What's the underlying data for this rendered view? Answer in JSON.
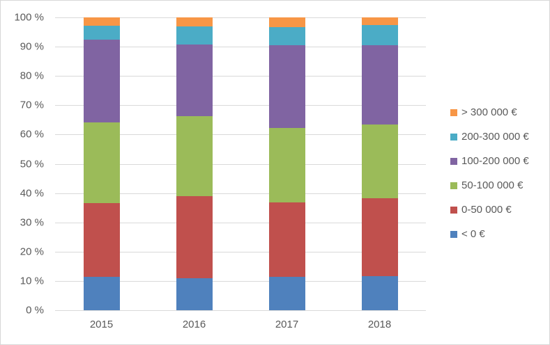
{
  "chart_data": {
    "type": "bar",
    "stacked": true,
    "percent": true,
    "title": "",
    "xlabel": "",
    "ylabel": "",
    "categories": [
      "2015",
      "2016",
      "2017",
      "2018"
    ],
    "series": [
      {
        "name": "< 0 €",
        "color": "#4F81BD",
        "values": [
          11.5,
          10.9,
          11.3,
          11.6
        ]
      },
      {
        "name": "0-50 000 €",
        "color": "#C0504D",
        "values": [
          25.0,
          28.0,
          25.4,
          26.6
        ]
      },
      {
        "name": "50-100 000 €",
        "color": "#9BBB59",
        "values": [
          27.6,
          27.3,
          25.6,
          25.3
        ]
      },
      {
        "name": "100-200 000 €",
        "color": "#8064A2",
        "values": [
          28.2,
          24.6,
          28.1,
          27.1
        ]
      },
      {
        "name": "200-300 000 €",
        "color": "#4BACC6",
        "values": [
          4.9,
          6.2,
          6.3,
          6.7
        ]
      },
      {
        "name": "> 300 000 €",
        "color": "#F79646",
        "values": [
          2.8,
          3.0,
          3.3,
          2.7
        ]
      }
    ],
    "ylim": [
      0,
      100
    ],
    "ytick_step": 10,
    "ytick_suffix": " %",
    "ytick_labels": [
      "0 %",
      "10 %",
      "20 %",
      "30 %",
      "40 %",
      "50 %",
      "60 %",
      "70 %",
      "80 %",
      "90 %",
      "100 %"
    ],
    "grid": true,
    "gridline_color": "#D9D9D9",
    "text_color": "#595959",
    "legend_position": "right",
    "legend_order": "reversed",
    "legend_labels_top_to_bottom": [
      "> 300 000 €",
      "200-300 000 €",
      "100-200 000 €",
      "50-100 000 €",
      "0-50 000 €",
      "< 0 €"
    ]
  }
}
